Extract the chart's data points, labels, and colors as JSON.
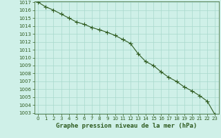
{
  "x": [
    0,
    1,
    2,
    3,
    4,
    5,
    6,
    7,
    8,
    9,
    10,
    11,
    12,
    13,
    14,
    15,
    16,
    17,
    18,
    19,
    20,
    21,
    22,
    23
  ],
  "y": [
    1017.0,
    1016.4,
    1016.0,
    1015.5,
    1015.0,
    1014.5,
    1014.2,
    1013.8,
    1013.5,
    1013.2,
    1012.8,
    1012.3,
    1011.8,
    1010.5,
    1009.5,
    1009.0,
    1008.2,
    1007.5,
    1007.0,
    1006.3,
    1005.8,
    1005.2,
    1004.5,
    1002.8
  ],
  "line_color": "#2d5a1e",
  "marker": "+",
  "marker_size": 4,
  "marker_color": "#2d5a1e",
  "bg_color": "#cff0e8",
  "grid_color": "#a8d8cc",
  "tick_color": "#2d5a1e",
  "label_color": "#2d5a1e",
  "xlabel": "Graphe pression niveau de la mer (hPa)",
  "ylim_min": 1003,
  "ylim_max": 1017,
  "xlim_min": 0,
  "xlim_max": 23,
  "yticks": [
    1003,
    1004,
    1005,
    1006,
    1007,
    1008,
    1009,
    1010,
    1011,
    1012,
    1013,
    1014,
    1015,
    1016,
    1017
  ],
  "xticks": [
    0,
    1,
    2,
    3,
    4,
    5,
    6,
    7,
    8,
    9,
    10,
    11,
    12,
    13,
    14,
    15,
    16,
    17,
    18,
    19,
    20,
    21,
    22,
    23
  ],
  "tick_fontsize": 5.0,
  "label_fontsize": 6.5,
  "line_width": 0.8
}
